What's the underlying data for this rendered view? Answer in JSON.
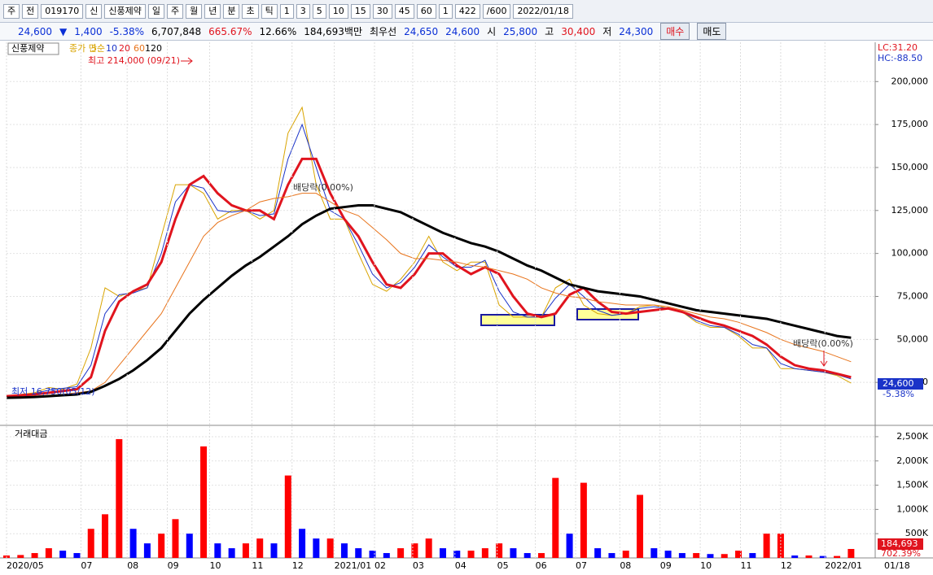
{
  "toolbar": {
    "items": [
      "주",
      "전",
      "019170",
      "신",
      "신풍제약",
      "일",
      "주",
      "월",
      "년",
      "분",
      "초",
      "틱",
      "1",
      "3",
      "5",
      "10",
      "15",
      "30",
      "45",
      "60",
      "1",
      "422",
      "/600",
      "2022/01/18"
    ]
  },
  "infobar": {
    "price": "24,600",
    "arrow": "▼",
    "change": "1,400",
    "rate": "-5.38%",
    "volume": "6,707,848",
    "vol_rate": "665.67%",
    "turnover": "12.66%",
    "amount": "184,693백만",
    "best_label": "최우선",
    "ask": "24,650",
    "bid": "24,600",
    "open_label": "시",
    "open": "25,800",
    "high_label": "고",
    "high": "30,400",
    "low_label": "저",
    "low": "24,300",
    "buy": "매수",
    "sell": "매도"
  },
  "chart_data": [
    {
      "type": "line",
      "name": "신풍제약",
      "ma_label": "종가 단순",
      "annotations": {
        "high": "최고 214,000 (09/21)",
        "low": "최저 16,750(05/12)",
        "ex_div1": "배당락(0.00%)",
        "ex_div2": "배당락(0.00%)",
        "lc": "LC:31.20",
        "hc": "HC:-88.50",
        "last": "24,600",
        "last_rate": "-5.38%"
      },
      "x": [
        0,
        7,
        14,
        21,
        28,
        35,
        42,
        49,
        56,
        63,
        70,
        77,
        84,
        91,
        98,
        105,
        112,
        119,
        126,
        133,
        140,
        147,
        154,
        161,
        168,
        175,
        182,
        189,
        196,
        203,
        210,
        217,
        224,
        231,
        238,
        245,
        252,
        259,
        266,
        273,
        280,
        287,
        294,
        301,
        308,
        315,
        322,
        329,
        336,
        343,
        350,
        357,
        364,
        371,
        378,
        385,
        392,
        399,
        406,
        413,
        420
      ],
      "series": [
        {
          "name": "5",
          "color": "#d9a400",
          "width": 1,
          "values": [
            17000,
            18000,
            19000,
            22000,
            21000,
            24000,
            45000,
            80000,
            75000,
            78000,
            80000,
            110000,
            140000,
            140000,
            135000,
            120000,
            125000,
            125000,
            120000,
            125000,
            170000,
            185000,
            140000,
            120000,
            120000,
            100000,
            82000,
            78000,
            85000,
            95000,
            110000,
            95000,
            90000,
            95000,
            95000,
            70000,
            63000,
            63000,
            63000,
            80000,
            85000,
            70000,
            65000,
            64000,
            65000,
            69000,
            70000,
            68000,
            66000,
            60000,
            57000,
            57000,
            52000,
            45000,
            45000,
            33000,
            33000,
            32000,
            31000,
            29000,
            24600
          ]
        },
        {
          "name": "10",
          "color": "#1a33c8",
          "width": 1,
          "values": [
            17000,
            17500,
            18500,
            20500,
            21500,
            22500,
            35000,
            65000,
            76000,
            77000,
            80000,
            100000,
            130000,
            140000,
            138000,
            125000,
            124000,
            125000,
            122000,
            123000,
            155000,
            175000,
            150000,
            125000,
            120000,
            105000,
            88000,
            80000,
            83000,
            92000,
            105000,
            98000,
            92000,
            92000,
            96000,
            78000,
            66000,
            63000,
            63000,
            74000,
            82000,
            75000,
            67000,
            64000,
            65000,
            68000,
            69000,
            68000,
            66000,
            61000,
            58000,
            57000,
            53000,
            47000,
            45000,
            36000,
            33000,
            32000,
            31000,
            29500,
            27000
          ]
        },
        {
          "name": "20",
          "color": "#e0141e",
          "width": 3,
          "values": [
            17000,
            17500,
            18000,
            19000,
            20000,
            21000,
            28000,
            55000,
            72000,
            78000,
            82000,
            95000,
            120000,
            140000,
            145000,
            135000,
            128000,
            125000,
            125000,
            120000,
            140000,
            155000,
            155000,
            135000,
            120000,
            110000,
            95000,
            82000,
            80000,
            88000,
            100000,
            100000,
            93000,
            88000,
            92000,
            88000,
            75000,
            65000,
            63000,
            65000,
            76000,
            80000,
            72000,
            66000,
            65000,
            66000,
            67000,
            68000,
            66000,
            63000,
            60000,
            58000,
            55000,
            52000,
            47000,
            40000,
            35000,
            33000,
            32000,
            30000,
            28000
          ]
        },
        {
          "name": "60",
          "color": "#e8741c",
          "width": 1,
          "values": [
            16000,
            16500,
            17000,
            17500,
            18000,
            19000,
            20000,
            25000,
            35000,
            45000,
            55000,
            65000,
            80000,
            95000,
            110000,
            118000,
            122000,
            125000,
            130000,
            132000,
            133000,
            135000,
            135000,
            130000,
            125000,
            122000,
            115000,
            108000,
            100000,
            97000,
            97000,
            96000,
            95000,
            93000,
            92000,
            90000,
            88000,
            85000,
            80000,
            77000,
            75000,
            74000,
            72000,
            71000,
            70000,
            70000,
            70000,
            69000,
            67000,
            65000,
            63000,
            62000,
            60000,
            57000,
            54000,
            50000,
            47000,
            45000,
            43000,
            40000,
            37000
          ]
        },
        {
          "name": "120",
          "color": "#000000",
          "width": 3,
          "values": [
            16000,
            16200,
            16500,
            17000,
            17500,
            18000,
            19500,
            23000,
            27000,
            32000,
            38000,
            45000,
            55000,
            65000,
            73000,
            80000,
            87000,
            93000,
            98000,
            104000,
            110000,
            117000,
            122000,
            126000,
            127000,
            128000,
            128000,
            126000,
            124000,
            120000,
            116000,
            112000,
            109000,
            106000,
            104000,
            101000,
            97000,
            93000,
            90000,
            86000,
            82000,
            80000,
            78000,
            77000,
            76000,
            75000,
            73000,
            71000,
            69000,
            67000,
            66000,
            65000,
            64000,
            63000,
            62000,
            60000,
            58000,
            56000,
            54000,
            52000,
            51000
          ]
        }
      ],
      "xlim": [
        0,
        432
      ],
      "ylim": [
        0,
        220000
      ],
      "yticks": [
        {
          "value": 25000,
          "label": "25,000"
        },
        {
          "value": 50000,
          "label": "50,000"
        },
        {
          "value": 75000,
          "label": "75,000"
        },
        {
          "value": 100000,
          "label": "100,000"
        },
        {
          "value": 125000,
          "label": "125,000"
        },
        {
          "value": 150000,
          "label": "150,000"
        },
        {
          "value": 175000,
          "label": "175,000"
        },
        {
          "value": 200000,
          "label": "200,000"
        }
      ],
      "grid": true
    },
    {
      "type": "bar",
      "name": "거래대금",
      "last_label": "184,693",
      "last_rate": "702.39%",
      "x": [
        0,
        7,
        14,
        21,
        28,
        35,
        42,
        49,
        56,
        63,
        70,
        77,
        84,
        91,
        98,
        105,
        112,
        119,
        126,
        133,
        140,
        147,
        154,
        161,
        168,
        175,
        182,
        189,
        196,
        203,
        210,
        217,
        224,
        231,
        238,
        245,
        252,
        259,
        266,
        273,
        280,
        287,
        294,
        301,
        308,
        315,
        322,
        329,
        336,
        343,
        350,
        357,
        364,
        371,
        378,
        385,
        392,
        399,
        406,
        413,
        420
      ],
      "values": [
        50000,
        60000,
        100000,
        200000,
        150000,
        100000,
        600000,
        900000,
        2450000,
        600000,
        300000,
        500000,
        800000,
        500000,
        2300000,
        300000,
        200000,
        300000,
        400000,
        300000,
        1700000,
        600000,
        400000,
        400000,
        300000,
        200000,
        150000,
        100000,
        200000,
        300000,
        400000,
        200000,
        150000,
        150000,
        200000,
        300000,
        200000,
        100000,
        100000,
        1650000,
        500000,
        1550000,
        200000,
        100000,
        150000,
        1300000,
        200000,
        150000,
        100000,
        100000,
        80000,
        80000,
        150000,
        100000,
        500000,
        500000,
        50000,
        50000,
        40000,
        40000,
        184693
      ],
      "up_color": "#ff0000",
      "down_color": "#0000ff",
      "xlim": [
        0,
        432
      ],
      "ylim": [
        0,
        2650000
      ],
      "yticks": [
        {
          "value": 500000,
          "label": "500K"
        },
        {
          "value": 1000000,
          "label": "1,000K"
        },
        {
          "value": 1500000,
          "label": "1,500K"
        },
        {
          "value": 2000000,
          "label": "2,000K"
        },
        {
          "value": 2500000,
          "label": "2,500K"
        }
      ],
      "xticks": [
        {
          "value": 0,
          "label": "2020/05"
        },
        {
          "value": 37,
          "label": "07"
        },
        {
          "value": 60,
          "label": "08"
        },
        {
          "value": 80,
          "label": "09"
        },
        {
          "value": 101,
          "label": "10"
        },
        {
          "value": 122,
          "label": "11"
        },
        {
          "value": 142,
          "label": "12"
        },
        {
          "value": 163,
          "label": "2021/01"
        },
        {
          "value": 183,
          "label": "02"
        },
        {
          "value": 202,
          "label": "03"
        },
        {
          "value": 223,
          "label": "04"
        },
        {
          "value": 244,
          "label": "05"
        },
        {
          "value": 263,
          "label": "06"
        },
        {
          "value": 283,
          "label": "07"
        },
        {
          "value": 305,
          "label": "08"
        },
        {
          "value": 325,
          "label": "09"
        },
        {
          "value": 345,
          "label": "10"
        },
        {
          "value": 365,
          "label": "11"
        },
        {
          "value": 385,
          "label": "12"
        },
        {
          "value": 407,
          "label": "2022/01"
        }
      ],
      "last_date": "01/18",
      "grid": true
    }
  ]
}
